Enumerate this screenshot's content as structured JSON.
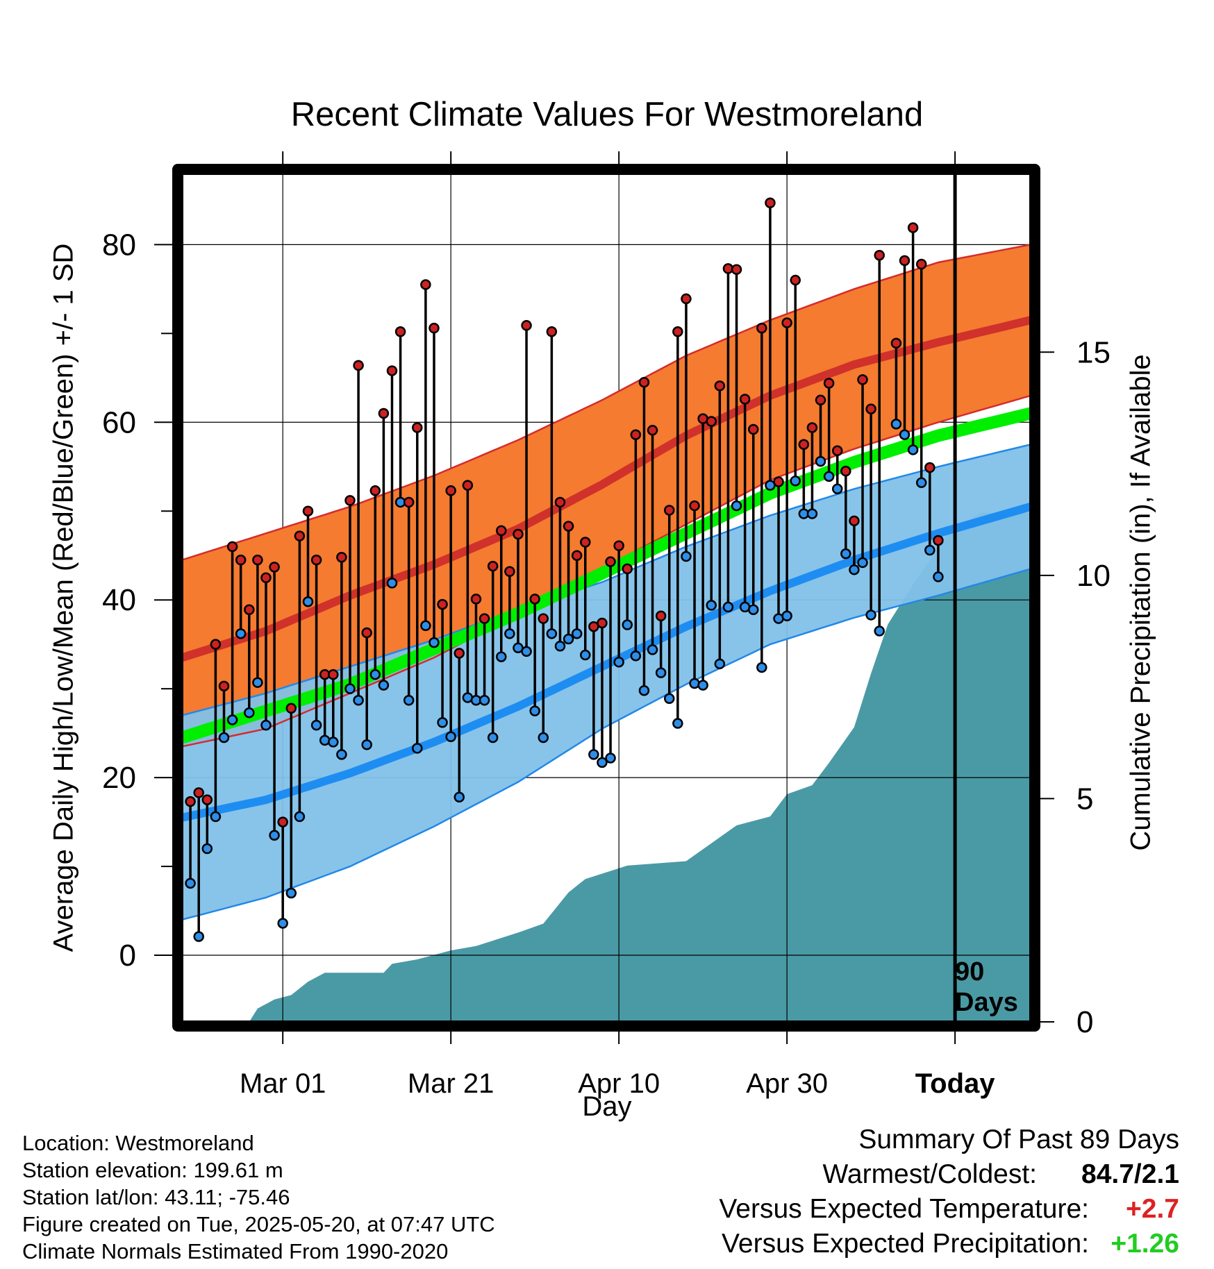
{
  "chart_data": {
    "type": "line",
    "title": "Recent Climate Values For Westmoreland",
    "xlabel": "Day",
    "ylabel": "Average Daily High/Low/Mean (Red/Blue/Green) +/- 1 SD",
    "y2label": "Cumulative Precipitation (in), If Available",
    "x_tick_labels": [
      "Mar 01",
      "Mar 21",
      "Apr 10",
      "Apr 30",
      "Today"
    ],
    "x_tick_days": [
      12,
      32,
      52,
      72,
      92
    ],
    "x_range_days": [
      0,
      101
    ],
    "ylim": [
      -7.5,
      88
    ],
    "y_ticks": [
      0,
      20,
      40,
      60,
      80
    ],
    "y2_ticks": [
      0,
      5,
      10,
      15
    ],
    "y2lim": [
      0,
      19
    ],
    "today_day": 92,
    "today_annotation": [
      "90",
      "Days"
    ],
    "normals": {
      "days": [
        0,
        10,
        20,
        30,
        40,
        50,
        60,
        70,
        80,
        90,
        101
      ],
      "high_mean": [
        33.5,
        36.5,
        40.5,
        44,
        48,
        53,
        58.5,
        63,
        66.5,
        69,
        71.5
      ],
      "high_upper": [
        44.5,
        47.5,
        50.5,
        54,
        58,
        62.5,
        67.5,
        71.5,
        75,
        78,
        80
      ],
      "high_lower": [
        23.5,
        25.5,
        29.5,
        33.5,
        38.5,
        43.5,
        48.5,
        53.5,
        57,
        60,
        63
      ],
      "low_mean": [
        15.5,
        17.5,
        20.5,
        24,
        28,
        32.5,
        37,
        41,
        44.5,
        47.5,
        50.5
      ],
      "low_upper": [
        27,
        29.5,
        32.5,
        35.5,
        39,
        42,
        46,
        49.5,
        52.5,
        55,
        57.5
      ],
      "low_lower": [
        4,
        6.5,
        10,
        14.5,
        19.5,
        25.5,
        30.5,
        35,
        38,
        40.5,
        43.5
      ],
      "daily_mean": [
        24.5,
        27.5,
        30.5,
        34.5,
        38.5,
        43,
        47.5,
        52,
        55.5,
        58.5,
        61
      ]
    },
    "series": [
      {
        "name": "Daily High",
        "start_day": 1,
        "values": [
          17.3,
          18.3,
          17.5,
          35,
          30.3,
          46,
          44.5,
          38.9,
          44.5,
          42.5,
          43.7,
          15,
          27.8,
          47.2,
          50,
          44.5,
          31.6,
          31.6,
          44.8,
          51.2,
          66.4,
          36.3,
          52.3,
          61,
          65.8,
          70.2,
          51,
          59.4,
          75.5,
          70.6,
          39.5,
          52.3,
          34,
          52.9,
          40.1,
          37.9,
          43.8,
          47.8,
          43.2,
          47.4,
          70.9,
          40.1,
          37.9,
          70.2,
          51,
          48.3,
          45,
          46.5,
          37,
          37.4,
          44.3,
          46.1,
          43.5,
          58.6,
          64.5,
          59.1,
          38.2,
          50.1,
          70.2,
          73.9,
          50.6,
          60.4,
          60.1,
          64.1,
          77.3,
          77.2,
          62.6,
          59.2,
          70.6,
          84.7,
          53.3,
          71.2,
          76,
          57.5,
          59.4,
          62.5,
          64.4,
          56.8,
          54.5,
          48.9,
          64.8,
          61.5,
          78.8,
          null,
          68.9,
          78.2,
          81.9,
          77.8,
          54.9,
          46.7
        ]
      },
      {
        "name": "Daily Low",
        "start_day": 1,
        "values": [
          8.1,
          2.1,
          12,
          15.6,
          24.5,
          26.5,
          36.2,
          27.3,
          30.7,
          25.9,
          13.5,
          3.6,
          7,
          15.6,
          39.8,
          25.9,
          24.2,
          24,
          22.6,
          30,
          28.7,
          23.7,
          31.6,
          30.4,
          41.9,
          51,
          28.7,
          23.3,
          37.1,
          35.2,
          26.2,
          24.6,
          17.8,
          29,
          28.7,
          28.7,
          24.5,
          33.6,
          36.2,
          34.6,
          34.2,
          27.5,
          24.5,
          36.2,
          34.8,
          35.6,
          36.2,
          33.8,
          22.6,
          21.7,
          22.2,
          33,
          37.2,
          33.7,
          29.8,
          34.4,
          31.8,
          28.9,
          26.1,
          44.9,
          30.6,
          30.4,
          39.4,
          32.8,
          39.2,
          50.6,
          39.2,
          38.9,
          32.4,
          52.9,
          37.9,
          38.2,
          53.4,
          49.7,
          49.7,
          55.6,
          53.9,
          52.5,
          45.2,
          43.4,
          44.2,
          38.3,
          36.5,
          null,
          59.8,
          58.6,
          56.9,
          53.2,
          45.6,
          42.6
        ]
      },
      {
        "name": "Cumulative Precipitation",
        "days": [
          0,
          8,
          9,
          11,
          13,
          15,
          17,
          20,
          24,
          25,
          28,
          32,
          35,
          40,
          43,
          46,
          48,
          53,
          60,
          66,
          70,
          72,
          75,
          77,
          80,
          82,
          84,
          87,
          91,
          95,
          101
        ],
        "values": [
          0,
          0,
          0.3,
          0.5,
          0.6,
          0.9,
          1.1,
          1.1,
          1.1,
          1.3,
          1.4,
          1.6,
          1.7,
          2,
          2.2,
          2.9,
          3.2,
          3.5,
          3.6,
          4.4,
          4.6,
          5.1,
          5.3,
          5.8,
          6.6,
          7.8,
          8.9,
          9.8,
          10.9,
          11.4,
          11.4
        ]
      }
    ],
    "colors": {
      "high_band": "#f47b30",
      "high_mean": "#cc2a2a",
      "low_band": "#82c1e8",
      "low_mean": "#1e8df2",
      "daily_mean": "#00ee00",
      "precip": "#4a9aa5",
      "high_marker": "#cc2222",
      "low_marker": "#2e8ee8"
    }
  },
  "footer": {
    "location": "Location: Westmoreland",
    "elevation": "Station elevation: 199.61 m",
    "latlon": "Station lat/lon: 43.11; -75.46",
    "created": "Figure created on Tue, 2025-05-20, at 07:47 UTC",
    "normals": "Climate Normals Estimated From 1990-2020"
  },
  "summary": {
    "heading": "Summary Of Past 89 Days",
    "warm_cold_label": "Warmest/Coldest:",
    "warm_cold_value": "84.7/2.1",
    "temp_label": "Versus Expected Temperature:",
    "temp_value": "+2.7",
    "temp_color": "#dd2222",
    "precip_label": "Versus Expected Precipitation:",
    "precip_value": "+1.26",
    "precip_color": "#22cc22"
  }
}
